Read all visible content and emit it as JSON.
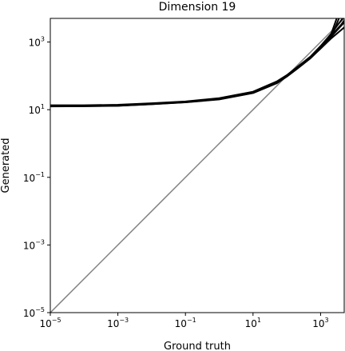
{
  "chart_data": {
    "type": "line",
    "title": "Dimension 19",
    "xlabel": "Ground truth",
    "ylabel": "Generated",
    "xscale": "log",
    "yscale": "log",
    "xlim": [
      1e-05,
      5000
    ],
    "ylim": [
      1e-05,
      5000
    ],
    "grid": false,
    "x_ticks": [
      {
        "value": 1e-05,
        "base": "10",
        "exp": "−5"
      },
      {
        "value": 0.001,
        "base": "10",
        "exp": "−3"
      },
      {
        "value": 0.1,
        "base": "10",
        "exp": "−1"
      },
      {
        "value": 10,
        "base": "10",
        "exp": "1"
      },
      {
        "value": 1000,
        "base": "10",
        "exp": "3"
      }
    ],
    "y_ticks": [
      {
        "value": 1e-05,
        "base": "10",
        "exp": "−5"
      },
      {
        "value": 0.001,
        "base": "10",
        "exp": "−3"
      },
      {
        "value": 0.1,
        "base": "10",
        "exp": "−1"
      },
      {
        "value": 10,
        "base": "10",
        "exp": "1"
      },
      {
        "value": 1000,
        "base": "10",
        "exp": "3"
      }
    ],
    "reference_line": {
      "x": [
        1e-05,
        5000
      ],
      "y": [
        1e-05,
        5000
      ],
      "color": "#808080"
    },
    "series_color": "#000000",
    "series": [
      {
        "x": [
          1e-05,
          0.0001,
          0.001,
          0.01,
          0.1,
          1,
          10,
          50,
          100,
          200,
          500,
          1000,
          2000,
          4000,
          5000
        ],
        "y": [
          13,
          13,
          13.5,
          15,
          17,
          21,
          33,
          65,
          100,
          170,
          350,
          700,
          1500,
          3200,
          4300
        ]
      },
      {
        "x": [
          1e-05,
          0.0001,
          0.001,
          0.01,
          0.1,
          1,
          10,
          50,
          100,
          200,
          500,
          1000,
          2000,
          3500
        ],
        "y": [
          12.5,
          12.6,
          13,
          14.5,
          16.5,
          20,
          31,
          60,
          95,
          160,
          330,
          650,
          1300,
          5000
        ]
      },
      {
        "x": [
          1e-05,
          0.0001,
          0.001,
          0.01,
          0.1,
          1,
          10,
          50,
          100,
          200,
          500,
          1000,
          2000,
          4500
        ],
        "y": [
          13.5,
          13.5,
          14,
          15.5,
          17.5,
          22,
          34,
          68,
          105,
          180,
          370,
          760,
          1700,
          5000
        ]
      },
      {
        "x": [
          1e-05,
          0.0001,
          0.001,
          0.01,
          0.1,
          1,
          10,
          50,
          100,
          200,
          500,
          1000,
          2000,
          5000
        ],
        "y": [
          12.8,
          12.8,
          13.2,
          14.8,
          16.8,
          21,
          32,
          62,
          98,
          165,
          340,
          680,
          1400,
          3800
        ]
      },
      {
        "x": [
          1e-05,
          0.0001,
          0.001,
          0.01,
          0.1,
          1,
          10,
          50,
          100,
          200,
          500,
          1000,
          2000,
          3000
        ],
        "y": [
          13.2,
          13.3,
          13.7,
          15.2,
          17.2,
          21.5,
          33.5,
          66,
          102,
          175,
          360,
          730,
          1600,
          5000
        ]
      },
      {
        "x": [
          1e-05,
          0.0001,
          0.001,
          0.01,
          0.1,
          1,
          10,
          50,
          100,
          200,
          500,
          1000,
          2000,
          5000
        ],
        "y": [
          12.6,
          12.7,
          13.1,
          14.6,
          16.6,
          20.5,
          31.5,
          61,
          96,
          162,
          335,
          640,
          1250,
          2700
        ]
      }
    ]
  }
}
